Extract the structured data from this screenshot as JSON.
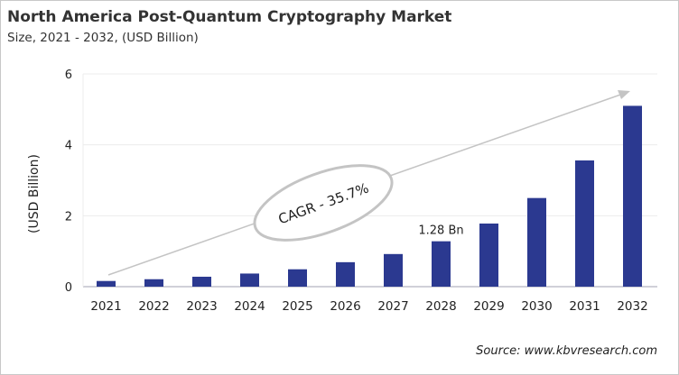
{
  "header": {
    "title": "North America Post-Quantum Cryptography Market",
    "subtitle": "Size, 2021 - 2032, (USD Billion)"
  },
  "source": "Source: www.kbvresearch.com",
  "chart_data": {
    "type": "bar",
    "title": "North America Post-Quantum Cryptography Market",
    "subtitle": "Size, 2021 - 2032, (USD Billion)",
    "ylabel": "(USD Billion)",
    "xlabel": "",
    "categories": [
      "2021",
      "2022",
      "2023",
      "2024",
      "2025",
      "2026",
      "2027",
      "2028",
      "2029",
      "2030",
      "2031",
      "2032"
    ],
    "values": [
      0.16,
      0.21,
      0.28,
      0.37,
      0.49,
      0.69,
      0.92,
      1.28,
      1.78,
      2.5,
      3.56,
      5.1
    ],
    "ylim": [
      0,
      6
    ],
    "yticks": [
      "0",
      "2",
      "4",
      "6"
    ],
    "grid": true,
    "bar_color": "#2b3990",
    "data_labels": [
      {
        "category": "2028",
        "text": "1.28 Bn"
      }
    ],
    "annotation": "CAGR - 35.7%"
  }
}
